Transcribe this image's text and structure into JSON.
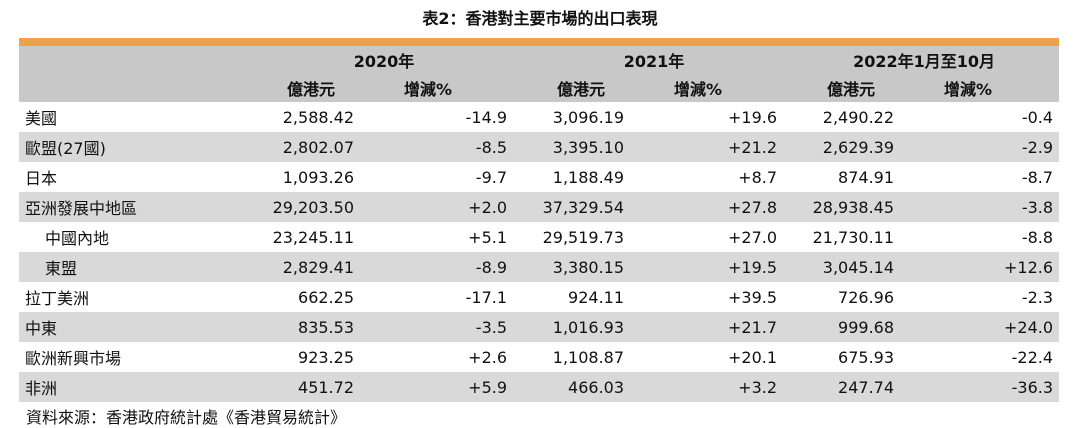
{
  "title": "表2：香港對主要市場的出口表現",
  "header": {
    "periods": [
      "2020年",
      "2021年",
      "2022年1月至10月"
    ],
    "value_label": "億港元",
    "change_label": "增減%"
  },
  "rows": [
    {
      "region": "美國",
      "sub": false,
      "v2020": "2,588.42",
      "c2020": "-14.9",
      "v2021": "3,096.19",
      "c2021": "+19.6",
      "v2022": "2,490.22",
      "c2022": "-0.4"
    },
    {
      "region": "歐盟(27國)",
      "sub": false,
      "v2020": "2,802.07",
      "c2020": "-8.5",
      "v2021": "3,395.10",
      "c2021": "+21.2",
      "v2022": "2,629.39",
      "c2022": "-2.9"
    },
    {
      "region": "日本",
      "sub": false,
      "v2020": "1,093.26",
      "c2020": "-9.7",
      "v2021": "1,188.49",
      "c2021": "+8.7",
      "v2022": "874.91",
      "c2022": "-8.7"
    },
    {
      "region": "亞洲發展中地區",
      "sub": false,
      "v2020": "29,203.50",
      "c2020": "+2.0",
      "v2021": "37,329.54",
      "c2021": "+27.8",
      "v2022": "28,938.45",
      "c2022": "-3.8"
    },
    {
      "region": "中國內地",
      "sub": true,
      "v2020": "23,245.11",
      "c2020": "+5.1",
      "v2021": "29,519.73",
      "c2021": "+27.0",
      "v2022": "21,730.11",
      "c2022": "-8.8"
    },
    {
      "region": "東盟",
      "sub": true,
      "v2020": "2,829.41",
      "c2020": "-8.9",
      "v2021": "3,380.15",
      "c2021": "+19.5",
      "v2022": "3,045.14",
      "c2022": "+12.6"
    },
    {
      "region": "拉丁美洲",
      "sub": false,
      "v2020": "662.25",
      "c2020": "-17.1",
      "v2021": "924.11",
      "c2021": "+39.5",
      "v2022": "726.96",
      "c2022": "-2.3"
    },
    {
      "region": "中東",
      "sub": false,
      "v2020": "835.53",
      "c2020": "-3.5",
      "v2021": "1,016.93",
      "c2021": "+21.7",
      "v2022": "999.68",
      "c2022": "+24.0"
    },
    {
      "region": "歐洲新興市場",
      "sub": false,
      "v2020": "923.25",
      "c2020": "+2.6",
      "v2021": "1,108.87",
      "c2021": "+20.1",
      "v2022": "675.93",
      "c2022": "-22.4"
    },
    {
      "region": "非洲",
      "sub": false,
      "v2020": "451.72",
      "c2020": "+5.9",
      "v2021": "466.03",
      "c2021": "+3.2",
      "v2022": "247.74",
      "c2022": "-36.3"
    }
  ],
  "source": "資料來源：香港政府統計處《香港貿易統計》",
  "colors": {
    "accent_bar": "#f0a04b",
    "header_bg": "#c8c8c8",
    "stripe_bg": "#d9d9d9"
  }
}
